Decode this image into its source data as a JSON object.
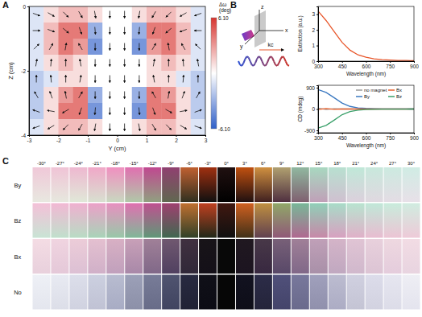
{
  "panel_labels": [
    "A",
    "B",
    "C"
  ],
  "chart_data": [
    {
      "type": "heatmap",
      "x_label": "Y (cm)",
      "y_label": "Z (cm)",
      "xlim": [
        -3,
        3
      ],
      "xticks": [
        -3,
        -2,
        -1,
        0,
        1,
        2,
        3
      ],
      "ylim": [
        -4,
        0
      ],
      "yticks": [
        -4,
        -2,
        0
      ],
      "x": [
        -2.75,
        -2.25,
        -1.75,
        -1.25,
        -0.75,
        -0.25,
        0.25,
        0.75,
        1.25,
        1.75,
        2.25,
        2.75
      ],
      "y": [
        -0.25,
        -0.75,
        -1.25,
        -1.75,
        -2.25,
        -2.75,
        -3.25,
        -3.75
      ],
      "values": [
        [
          -1,
          1,
          2,
          2,
          1,
          0,
          0,
          1,
          2,
          2,
          1,
          -1
        ],
        [
          -1,
          2,
          4,
          4,
          -3,
          0,
          0,
          -3,
          4,
          4,
          2,
          -1
        ],
        [
          -1,
          2,
          4,
          3,
          -4,
          0,
          0,
          -4,
          3,
          4,
          2,
          -1
        ],
        [
          -1,
          1,
          2,
          1,
          0,
          0,
          0,
          0,
          1,
          2,
          1,
          -1
        ],
        [
          -2,
          -1,
          1,
          1,
          0,
          0,
          0,
          0,
          1,
          1,
          -1,
          -2
        ],
        [
          -2,
          1,
          3,
          4,
          -3,
          0,
          0,
          -3,
          4,
          3,
          1,
          -2
        ],
        [
          -2,
          1,
          4,
          4,
          -4,
          0,
          0,
          -4,
          4,
          4,
          1,
          -2
        ],
        [
          -1,
          1,
          2,
          2,
          1,
          0,
          0,
          1,
          2,
          2,
          1,
          -1
        ]
      ],
      "field_angle_deg": [
        [
          -20,
          -30,
          -45,
          -60,
          -80,
          -90,
          -90,
          -100,
          -120,
          -135,
          -150,
          -160
        ],
        [
          0,
          -20,
          -40,
          -70,
          -85,
          -90,
          -90,
          -95,
          -110,
          -140,
          -160,
          180
        ],
        [
          45,
          60,
          80,
          120,
          -90,
          -90,
          -90,
          -90,
          60,
          100,
          120,
          135
        ],
        [
          80,
          85,
          90,
          100,
          -90,
          -90,
          -90,
          -90,
          80,
          90,
          95,
          100
        ],
        [
          90,
          95,
          90,
          80,
          -90,
          -90,
          -90,
          -90,
          100,
          90,
          85,
          90
        ],
        [
          120,
          110,
          100,
          60,
          -90,
          -90,
          -90,
          -90,
          120,
          80,
          70,
          60
        ],
        [
          160,
          170,
          -150,
          -110,
          -95,
          -90,
          -90,
          -85,
          -70,
          -30,
          10,
          20
        ],
        [
          -160,
          -150,
          -135,
          -120,
          -100,
          -90,
          -90,
          -80,
          -60,
          -45,
          -30,
          -20
        ]
      ],
      "colorbar": {
        "title_lines": [
          "Δω",
          "(deg)"
        ],
        "range": [
          -6.1,
          6.1
        ],
        "ticks": [
          {
            "value": 6.1,
            "label": "6.10"
          },
          {
            "value": -6.1,
            "label": "-6.10"
          }
        ],
        "colors": [
          "#2f5fc8",
          "#ffffff",
          "#d7342f"
        ]
      }
    },
    {
      "type": "line",
      "x_label": "Wavelength (nm)",
      "y_label": "Extinction (a.u.)",
      "xlim": [
        300,
        900
      ],
      "xticks": [
        300,
        450,
        600,
        750,
        900
      ],
      "ylim": [
        0,
        3.5
      ],
      "yticks": [
        0,
        1,
        2,
        3
      ],
      "x": [
        300,
        350,
        400,
        450,
        500,
        550,
        600,
        650,
        700,
        750,
        800,
        850,
        900
      ],
      "series": [
        {
          "color": "#e8562a",
          "values": [
            3.2,
            2.6,
            1.9,
            1.2,
            0.7,
            0.4,
            0.25,
            0.15,
            0.1,
            0.07,
            0.05,
            0.04,
            0.03
          ]
        }
      ]
    },
    {
      "type": "line",
      "x_label": "Wavelength (nm)",
      "y_label": "CD (mdeg)",
      "xlim": [
        300,
        900
      ],
      "xticks": [
        300,
        450,
        600,
        750,
        900
      ],
      "ylim": [
        -1000,
        1000
      ],
      "yticks": [
        -900,
        0,
        900
      ],
      "legend": "upper right",
      "x": [
        300,
        350,
        400,
        450,
        500,
        550,
        600,
        650,
        700,
        750,
        800,
        850,
        900
      ],
      "series": [
        {
          "name": "no magnet",
          "color": "#9a9a9a",
          "values": [
            40,
            -20,
            10,
            0,
            0,
            0,
            0,
            0,
            0,
            0,
            0,
            0,
            0
          ]
        },
        {
          "name": "By",
          "color": "#3a78c0",
          "values": [
            820,
            700,
            480,
            250,
            110,
            50,
            25,
            12,
            6,
            3,
            2,
            1,
            0
          ]
        },
        {
          "name": "Bx",
          "color": "#e8602c",
          "values": [
            -20,
            20,
            -10,
            0,
            0,
            0,
            0,
            0,
            0,
            0,
            0,
            0,
            0
          ]
        },
        {
          "name": "Bz",
          "color": "#3aa06a",
          "values": [
            -800,
            -690,
            -470,
            -240,
            -105,
            -48,
            -24,
            -12,
            -6,
            -3,
            -2,
            -1,
            0
          ]
        }
      ]
    }
  ],
  "schematic": {
    "axis_labels": [
      "x",
      "y",
      "z"
    ],
    "wave_label": "kc"
  },
  "photo_grid": {
    "column_labels": [
      "-30°",
      "-27°",
      "-24°",
      "-21°",
      "-18°",
      "-15°",
      "-12°",
      "-9°",
      "-6°",
      "-3°",
      "0°",
      "3°",
      "6°",
      "9°",
      "12°",
      "15°",
      "18°",
      "21°",
      "24°",
      "27°",
      "30°"
    ],
    "row_labels": [
      "By",
      "Bz",
      "Bx",
      "No"
    ],
    "colors": [
      [
        [
          "#f0c8d8",
          "#e8e8e0"
        ],
        [
          "#f0c4d6",
          "#e6e8de"
        ],
        [
          "#eeb8d0",
          "#e0e8d8"
        ],
        [
          "#f0a8c8",
          "#d8e0d0"
        ],
        [
          "#f090c0",
          "#c8d8c0"
        ],
        [
          "#e070b0",
          "#b0c8a8"
        ],
        [
          "#c04890",
          "#90a080"
        ],
        [
          "#904070",
          "#606850"
        ],
        [
          "#c06030",
          "#303020"
        ],
        [
          "#a03010",
          "#101010"
        ],
        [
          "#201010",
          "#000000"
        ],
        [
          "#c05010",
          "#201010"
        ],
        [
          "#d09040",
          "#402020"
        ],
        [
          "#b0a070",
          "#503040"
        ],
        [
          "#90b8a0",
          "#806070"
        ],
        [
          "#a8d8c0",
          "#c0a0b8"
        ],
        [
          "#b8e0d0",
          "#d0c0d0"
        ],
        [
          "#c0e8d8",
          "#dcd0dc"
        ],
        [
          "#c8e8dc",
          "#e0d8e0"
        ],
        [
          "#cceae0",
          "#e4dce4"
        ],
        [
          "#d0ece4",
          "#e8e0e8"
        ]
      ],
      [
        [
          "#f4c0d8",
          "#c8e4d4"
        ],
        [
          "#f2b8d4",
          "#c0e0cc"
        ],
        [
          "#f0b0d0",
          "#b8dcc4"
        ],
        [
          "#eca0c8",
          "#a8d4b8"
        ],
        [
          "#e890c0",
          "#98c8a8"
        ],
        [
          "#e070b0",
          "#80b898"
        ],
        [
          "#c05090",
          "#609878"
        ],
        [
          "#a04070",
          "#406850"
        ],
        [
          "#c07030",
          "#304028"
        ],
        [
          "#c04020",
          "#202818"
        ],
        [
          "#401810",
          "#101010"
        ],
        [
          "#d06020",
          "#403018"
        ],
        [
          "#c09040",
          "#604050"
        ],
        [
          "#90a868",
          "#905878"
        ],
        [
          "#78b898",
          "#b06890"
        ],
        [
          "#90d0b8",
          "#c888a8"
        ],
        [
          "#a8dcc8",
          "#d8a0c0"
        ],
        [
          "#b8e4d0",
          "#e0b0c8"
        ],
        [
          "#c0e8d8",
          "#e8bcd0"
        ],
        [
          "#c8ecdc",
          "#ecc4d4"
        ],
        [
          "#d0ece0",
          "#eecad8"
        ]
      ],
      [
        [
          "#f4dce4",
          "#e8d0dc"
        ],
        [
          "#f0d4e0",
          "#e4c8d8"
        ],
        [
          "#ecccd8",
          "#dcc0d4"
        ],
        [
          "#e4c0d0",
          "#d0b0c8"
        ],
        [
          "#d8b0c4",
          "#c0a0bc"
        ],
        [
          "#c8a0b8",
          "#a888a8"
        ],
        [
          "#a08098",
          "#806888"
        ],
        [
          "#705870",
          "#504060"
        ],
        [
          "#403040",
          "#302838"
        ],
        [
          "#181418",
          "#141018"
        ],
        [
          "#080808",
          "#080808"
        ],
        [
          "#201820",
          "#1c1420"
        ],
        [
          "#483848",
          "#382840"
        ],
        [
          "#786078",
          "#584868"
        ],
        [
          "#a08098",
          "#806888"
        ],
        [
          "#c0a0b8",
          "#a890a8"
        ],
        [
          "#d4b4c8",
          "#c0a8c0"
        ],
        [
          "#e0c4d4",
          "#d0b8cc"
        ],
        [
          "#e8d0dc",
          "#dcc4d4"
        ],
        [
          "#eed8e0",
          "#e4ccdc"
        ],
        [
          "#f2dce4",
          "#e8d4e0"
        ]
      ],
      [
        [
          "#eef0f6",
          "#e4e6ee"
        ],
        [
          "#e8eaf2",
          "#dcdee8"
        ],
        [
          "#dcdeea",
          "#d0d2e0"
        ],
        [
          "#ccd0e0",
          "#c0c2d4"
        ],
        [
          "#b8bcd0",
          "#a8acc4"
        ],
        [
          "#9ca0b8",
          "#8c90a8"
        ],
        [
          "#787c98",
          "#686c88"
        ],
        [
          "#505470",
          "#404460"
        ],
        [
          "#282a40",
          "#202234"
        ],
        [
          "#101018",
          "#0c0c14"
        ],
        [
          "#060606",
          "#060606"
        ],
        [
          "#121220",
          "#0e0e18"
        ],
        [
          "#2c2c48",
          "#24243a"
        ],
        [
          "#50507a",
          "#44446a"
        ],
        [
          "#78789c",
          "#6a6a8c"
        ],
        [
          "#a0a0bc",
          "#9090ac"
        ],
        [
          "#bcbcd0",
          "#acacc4"
        ],
        [
          "#d0d0e0",
          "#c4c4d4"
        ],
        [
          "#dcdcea",
          "#d2d2e0"
        ],
        [
          "#e6e6f0",
          "#dcdce8"
        ],
        [
          "#eeeef4",
          "#e4e4ee"
        ]
      ]
    ]
  }
}
